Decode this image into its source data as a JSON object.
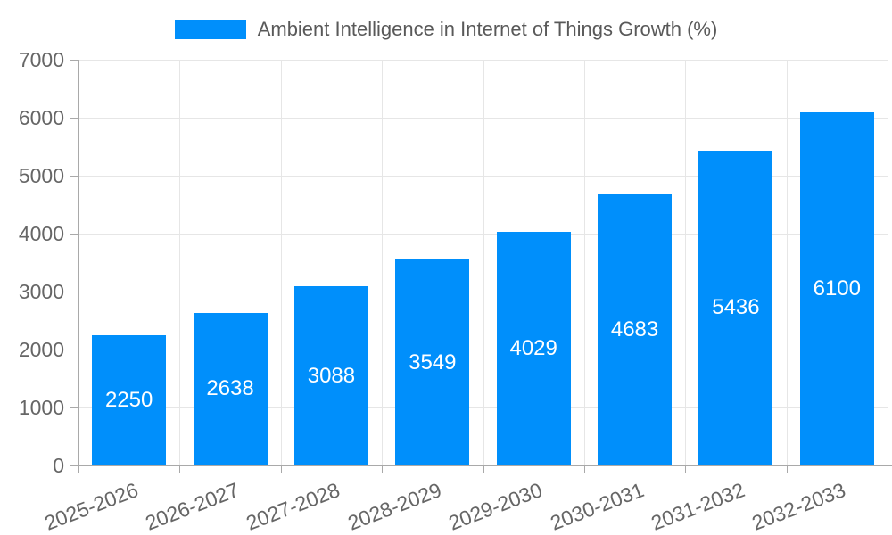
{
  "chart_data": {
    "type": "bar",
    "title": "Ambient Intelligence in Internet of Things Growth (%)",
    "legend": {
      "position": "top",
      "entries": [
        "Ambient Intelligence in Internet of Things Growth (%)"
      ]
    },
    "categories": [
      "2025-2026",
      "2026-2027",
      "2027-2028",
      "2028-2029",
      "2029-2030",
      "2030-2031",
      "2031-2032",
      "2032-2033"
    ],
    "values": [
      2250,
      2638,
      3088,
      3549,
      4029,
      4683,
      5436,
      6100
    ],
    "xlabel": "",
    "ylabel": "",
    "ylim": [
      0,
      7000
    ],
    "ytick_step": 1000,
    "yticks": [
      0,
      1000,
      2000,
      3000,
      4000,
      5000,
      6000,
      7000
    ],
    "grid": "horizontal-and-vertical",
    "value_labels": "inside-center",
    "x_label_rotation_deg": -21,
    "colors": {
      "bar": "#008FFB",
      "value_label": "#ffffff",
      "axis_label": "#666666",
      "legend_text": "#595959",
      "grid_line": "#e6e6e6",
      "axis_line": "#a9a9a9",
      "background": "#ffffff"
    }
  }
}
